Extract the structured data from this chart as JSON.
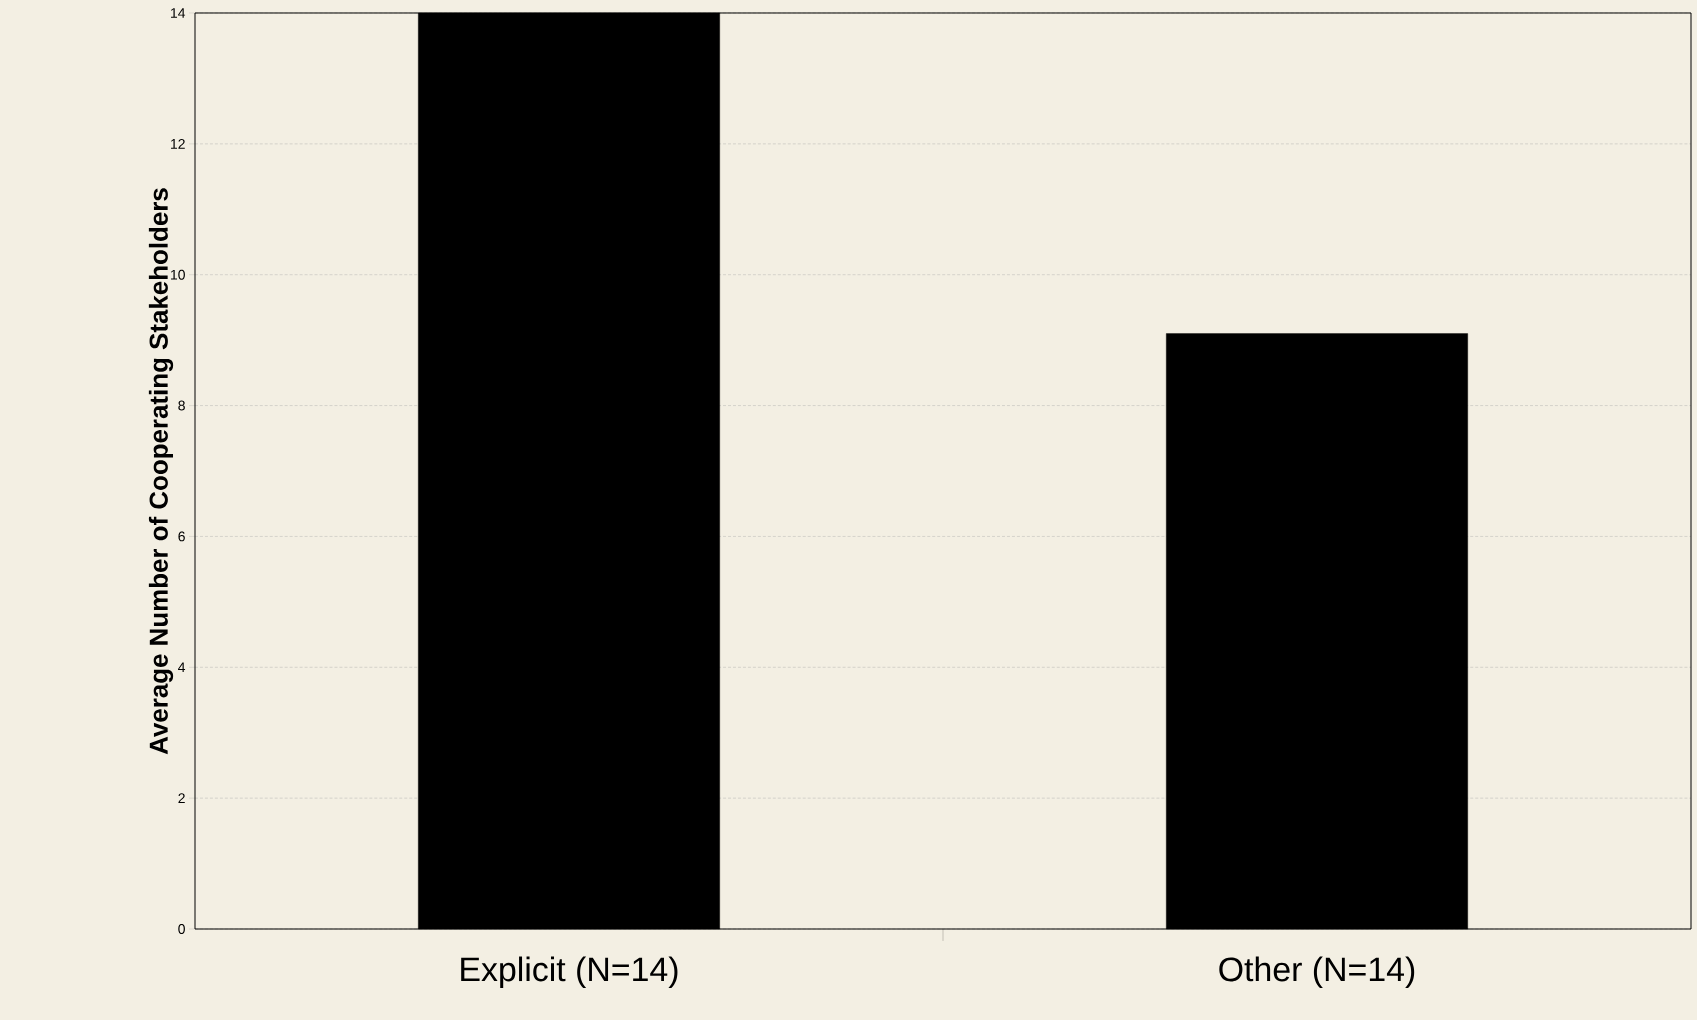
{
  "chart_data": {
    "type": "bar",
    "ylabel": "Average Number of Cooperating Stakeholders",
    "categories": [
      "Explicit (N=14)",
      "Other (N=14)"
    ],
    "values": [
      14,
      9.1
    ],
    "color": "#000000",
    "ylim": [
      0,
      14
    ],
    "yticks": [
      0,
      2,
      4,
      6,
      8,
      10,
      12,
      14
    ],
    "grid": "y"
  }
}
